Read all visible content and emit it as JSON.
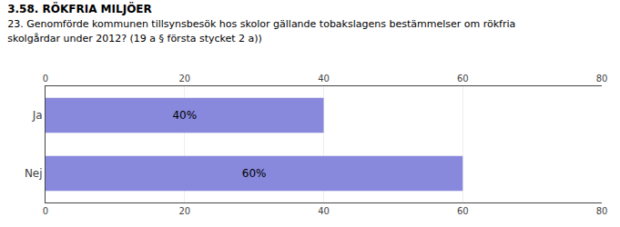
{
  "chart_data": {
    "type": "bar",
    "title": "3.58. RÖKFRIA MILJÖER",
    "subtitle": "23. Genomförde kommunen tillsynsbesök hos skolor gällande tobakslagens bestämmelser om rökfria\nskolgårdar under 2012? (19 a § första stycket 2 a))",
    "categories": [
      "Ja",
      "Nej"
    ],
    "values": [
      40,
      60
    ],
    "value_labels": [
      "40%",
      "60%"
    ],
    "data_labels": true,
    "color": "#8888dd",
    "orientation": "horizontal",
    "xlim": [
      0,
      80
    ],
    "xticks": [
      0,
      20,
      40,
      60,
      80
    ],
    "grid": true
  }
}
